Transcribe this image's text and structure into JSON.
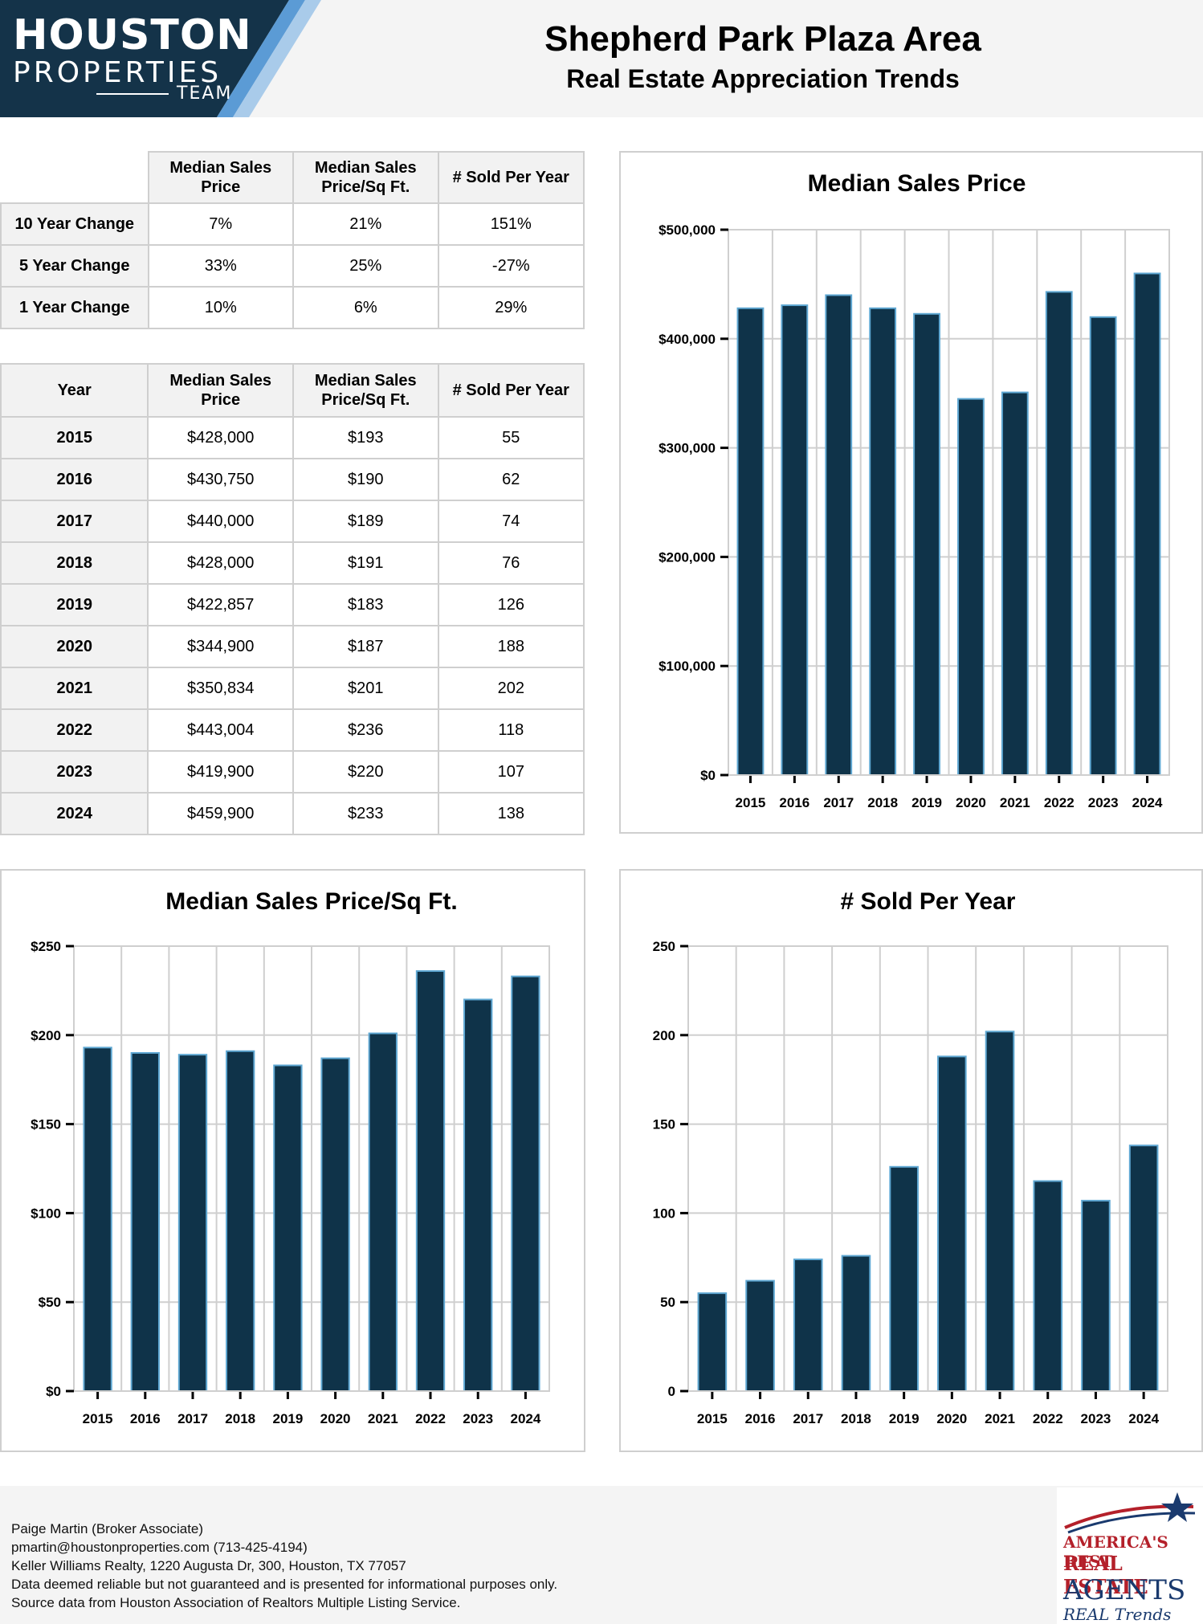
{
  "header": {
    "logo_line1": "HOUSTON",
    "logo_line2": "PROPERTIES",
    "logo_line3": "TEAM",
    "title": "Shepherd Park Plaza Area",
    "subtitle": "Real Estate Appreciation Trends"
  },
  "change_table": {
    "headers": [
      "Median Sales Price",
      "Median Sales Price/Sq Ft.",
      "# Sold Per Year"
    ],
    "rows": [
      {
        "label": "10 Year Change",
        "values": [
          "7%",
          "21%",
          "151%"
        ]
      },
      {
        "label": "5 Year Change",
        "values": [
          "33%",
          "25%",
          "-27%"
        ]
      },
      {
        "label": "1 Year Change",
        "values": [
          "10%",
          "6%",
          "29%"
        ]
      }
    ]
  },
  "year_table": {
    "headers": [
      "Year",
      "Median Sales Price",
      "Median Sales Price/Sq Ft.",
      "# Sold Per Year"
    ],
    "rows": [
      [
        "2015",
        "$428,000",
        "$193",
        "55"
      ],
      [
        "2016",
        "$430,750",
        "$190",
        "62"
      ],
      [
        "2017",
        "$440,000",
        "$189",
        "74"
      ],
      [
        "2018",
        "$428,000",
        "$191",
        "76"
      ],
      [
        "2019",
        "$422,857",
        "$183",
        "126"
      ],
      [
        "2020",
        "$344,900",
        "$187",
        "188"
      ],
      [
        "2021",
        "$350,834",
        "$201",
        "202"
      ],
      [
        "2022",
        "$443,004",
        "$236",
        "118"
      ],
      [
        "2023",
        "$419,900",
        "$220",
        "107"
      ],
      [
        "2024",
        "$459,900",
        "$233",
        "138"
      ]
    ]
  },
  "chart_data": [
    {
      "type": "bar",
      "title": "Median Sales Price",
      "categories": [
        "2015",
        "2016",
        "2017",
        "2018",
        "2019",
        "2020",
        "2021",
        "2022",
        "2023",
        "2024"
      ],
      "values": [
        428000,
        430750,
        440000,
        428000,
        422857,
        344900,
        350834,
        443004,
        419900,
        459900
      ],
      "ylim": [
        0,
        500000
      ],
      "yticks": [
        0,
        100000,
        200000,
        300000,
        400000,
        500000
      ],
      "ytick_labels": [
        "$0",
        "$100,000",
        "$200,000",
        "$300,000",
        "$400,000",
        "$500,000"
      ],
      "grid": true,
      "bar_color": "#0f3349",
      "bar_edge_color": "#5fa8d3"
    },
    {
      "type": "bar",
      "title": "Median Sales Price/Sq Ft.",
      "categories": [
        "2015",
        "2016",
        "2017",
        "2018",
        "2019",
        "2020",
        "2021",
        "2022",
        "2023",
        "2024"
      ],
      "values": [
        193,
        190,
        189,
        191,
        183,
        187,
        201,
        236,
        220,
        233
      ],
      "ylim": [
        0,
        250
      ],
      "yticks": [
        0,
        50,
        100,
        150,
        200,
        250
      ],
      "ytick_labels": [
        "$0",
        "$50",
        "$100",
        "$150",
        "$200",
        "$250"
      ],
      "grid": true,
      "bar_color": "#0f3349",
      "bar_edge_color": "#5fa8d3"
    },
    {
      "type": "bar",
      "title": "# Sold Per Year",
      "categories": [
        "2015",
        "2016",
        "2017",
        "2018",
        "2019",
        "2020",
        "2021",
        "2022",
        "2023",
        "2024"
      ],
      "values": [
        55,
        62,
        74,
        76,
        126,
        188,
        202,
        118,
        107,
        138
      ],
      "ylim": [
        0,
        250
      ],
      "yticks": [
        0,
        50,
        100,
        150,
        200,
        250
      ],
      "ytick_labels": [
        "0",
        "50",
        "100",
        "150",
        "200",
        "250"
      ],
      "grid": true,
      "bar_color": "#0f3349",
      "bar_edge_color": "#5fa8d3"
    }
  ],
  "footer": {
    "lines": [
      "Paige Martin (Broker Associate)",
      "pmartin@houstonproperties.com (713-425-4194)",
      "Keller Williams Realty, 1220 Augusta Dr, 300, Houston, TX 77057",
      "Data deemed reliable but not guaranteed and is presented for informational purposes only.",
      "Source data from Houston Association of Realtors Multiple Listing Service."
    ],
    "badge": [
      "AMERICA'S BEST",
      "REAL ESTATE",
      "AGENTS",
      "REAL Trends"
    ]
  },
  "colors": {
    "logo_bg": "#143349",
    "logo_accent1": "#5b9bd5",
    "logo_accent2": "#a9cbea"
  }
}
